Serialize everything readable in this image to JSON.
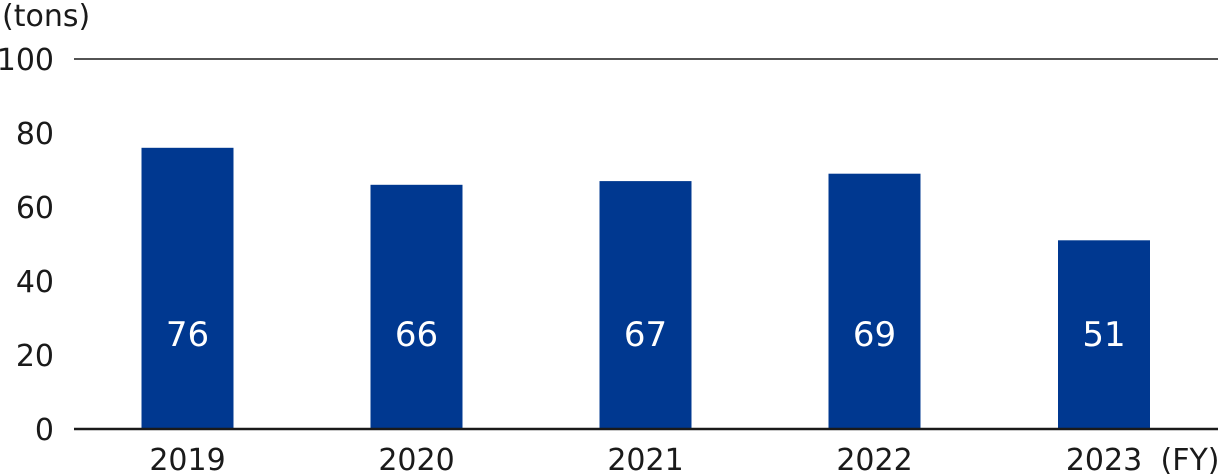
{
  "chart_data": {
    "type": "bar",
    "categories": [
      "2019",
      "2020",
      "2021",
      "2022",
      "2023"
    ],
    "values": [
      76,
      66,
      67,
      69,
      51
    ],
    "data_labels": [
      "76",
      "66",
      "67",
      "69",
      "51"
    ],
    "title": "",
    "ylabel": "(tons)",
    "xlabel": "(FY)",
    "ylim": [
      0,
      100
    ],
    "yticks": [
      0,
      20,
      40,
      60,
      80,
      100
    ],
    "grid": false,
    "colors": {
      "bar": "#003890",
      "axis": "#1a1a1a"
    }
  }
}
